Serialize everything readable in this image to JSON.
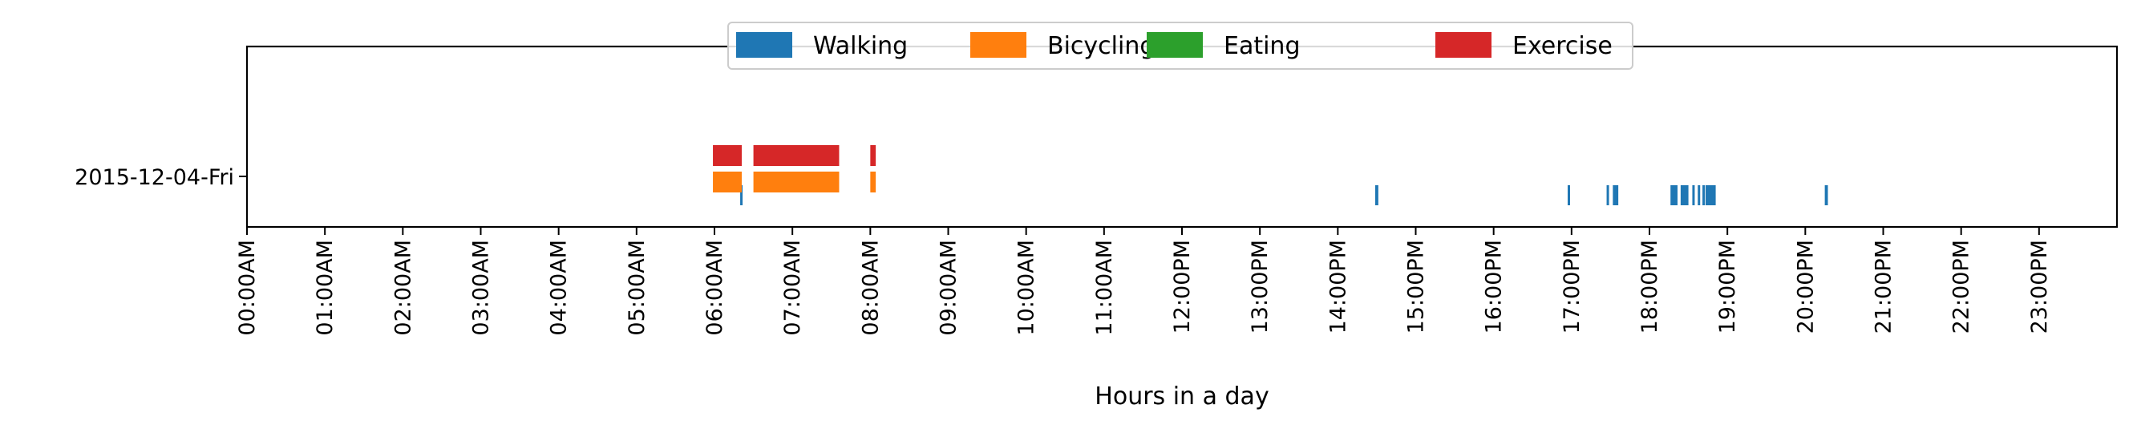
{
  "chart_data": {
    "type": "timeline",
    "xlabel": "Hours in a day",
    "ylabel": "",
    "xlim": [
      0,
      24
    ],
    "x_ticks": [
      "00:00AM",
      "01:00AM",
      "02:00AM",
      "03:00AM",
      "04:00AM",
      "05:00AM",
      "06:00AM",
      "07:00AM",
      "08:00AM",
      "09:00AM",
      "10:00AM",
      "11:00AM",
      "12:00PM",
      "13:00PM",
      "14:00PM",
      "15:00PM",
      "16:00PM",
      "17:00PM",
      "18:00PM",
      "19:00PM",
      "20:00PM",
      "21:00PM",
      "22:00PM",
      "23:00PM"
    ],
    "categories": [
      "2015-12-04-Fri"
    ],
    "legend_position": "top-center",
    "series": [
      {
        "name": "Walking",
        "color": "#1f77b4",
        "intervals": [
          [
            6.33,
            6.36
          ],
          [
            14.48,
            14.52
          ],
          [
            16.95,
            16.98
          ],
          [
            17.45,
            17.48
          ],
          [
            17.53,
            17.6
          ],
          [
            18.27,
            18.36
          ],
          [
            18.4,
            18.5
          ],
          [
            18.55,
            18.58
          ],
          [
            18.62,
            18.65
          ],
          [
            18.68,
            18.7
          ],
          [
            18.72,
            18.85
          ],
          [
            20.25,
            20.29
          ]
        ]
      },
      {
        "name": "Bicycling",
        "color": "#ff7f0e",
        "intervals": [
          [
            5.98,
            6.35
          ],
          [
            6.5,
            7.6
          ],
          [
            8.0,
            8.07
          ]
        ]
      },
      {
        "name": "Eating",
        "color": "#2ca02c",
        "intervals": []
      },
      {
        "name": "Exercise",
        "color": "#d62728",
        "intervals": [
          [
            5.98,
            6.35
          ],
          [
            6.5,
            7.6
          ],
          [
            8.0,
            8.07
          ]
        ]
      }
    ]
  }
}
